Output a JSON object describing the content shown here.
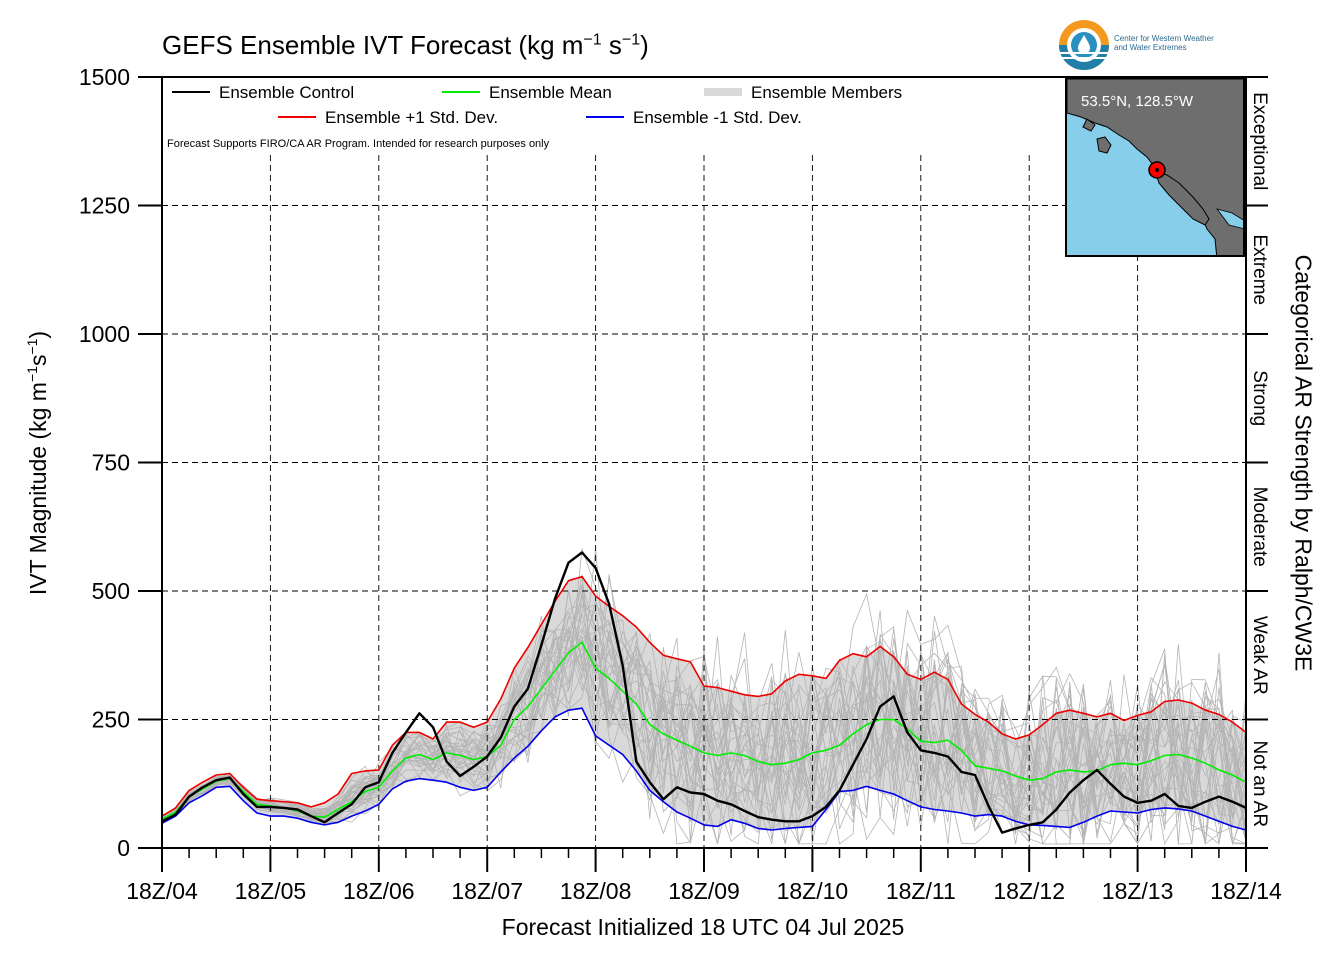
{
  "title": {
    "main": "GEFS Ensemble IVT Forecast (kg m",
    "exp1": "−1",
    "mid": " s",
    "exp2": "−1",
    "end": ")"
  },
  "ylabel": {
    "main": "IVT Magnitude (kg m",
    "exp1": "−1",
    "mid": "s",
    "exp2": "−1",
    "end": ")"
  },
  "right_axis_label": "Categorical AR Strength by Ralph/CW3E",
  "xlabel": "Forecast Initialized 18 UTC 04 Jul 2025",
  "note": "Forecast Supports FIRO/CA AR Program. Intended for research purposes only",
  "logo": {
    "line1": "Center for Western Weather",
    "line2": "and Water Extremes"
  },
  "inset": {
    "label": "53.5°N, 128.5°W"
  },
  "colors": {
    "control": "#000000",
    "mean": "#00ee00",
    "plus_std": "#ee0000",
    "minus_std": "#0000ee",
    "members": "#b4b4b4",
    "spread_fill": "#d9d9d9"
  },
  "chart_data": {
    "type": "line",
    "x_unit": "hours since 18Z/04",
    "x_ticks": [
      0,
      24,
      48,
      72,
      96,
      120,
      144,
      168,
      192,
      216,
      240
    ],
    "x_tick_labels": [
      "18Z/04",
      "18Z/05",
      "18Z/06",
      "18Z/07",
      "18Z/08",
      "18Z/09",
      "18Z/10",
      "18Z/11",
      "18Z/12",
      "18Z/13",
      "18Z/14"
    ],
    "xlim": [
      0,
      240
    ],
    "ylim": [
      0,
      1500
    ],
    "y_ticks": [
      0,
      250,
      500,
      750,
      1000,
      1250,
      1500
    ],
    "grid": true,
    "categories_right": [
      {
        "name": "Exceptional",
        "from": 1250,
        "to": 1500
      },
      {
        "name": "Extreme",
        "from": 1000,
        "to": 1250
      },
      {
        "name": "Strong",
        "from": 750,
        "to": 1000
      },
      {
        "name": "Moderate",
        "from": 500,
        "to": 750
      },
      {
        "name": "Weak AR",
        "from": 250,
        "to": 500
      },
      {
        "name": "Not an AR",
        "from": 0,
        "to": 250
      }
    ],
    "legend": [
      {
        "label": "Ensemble Control",
        "key": "control"
      },
      {
        "label": "Ensemble Mean",
        "key": "mean"
      },
      {
        "label": "Ensemble Members",
        "key": "members"
      },
      {
        "label": "Ensemble +1 Std. Dev.",
        "key": "plus_std"
      },
      {
        "label": "Ensemble -1 Std. Dev.",
        "key": "minus_std"
      }
    ],
    "x": [
      0,
      3,
      6,
      9,
      12,
      15,
      18,
      21,
      24,
      27,
      30,
      33,
      36,
      39,
      42,
      45,
      48,
      51,
      54,
      57,
      60,
      63,
      66,
      69,
      72,
      75,
      78,
      81,
      84,
      87,
      90,
      93,
      96,
      99,
      102,
      105,
      108,
      111,
      114,
      117,
      120,
      123,
      126,
      129,
      132,
      135,
      138,
      141,
      144,
      147,
      150,
      153,
      156,
      159,
      162,
      165,
      168,
      171,
      174,
      177,
      180,
      183,
      186,
      189,
      192,
      195,
      198,
      201,
      204,
      207,
      210,
      213,
      216,
      219,
      222,
      225,
      228,
      231,
      234,
      237,
      240
    ],
    "series": [
      {
        "name": "Ensemble Control",
        "key": "control",
        "values": [
          52,
          65,
          100,
          118,
          132,
          137,
          105,
          80,
          80,
          78,
          75,
          62,
          50,
          68,
          85,
          118,
          128,
          185,
          225,
          262,
          235,
          168,
          140,
          158,
          178,
          215,
          275,
          310,
          395,
          485,
          555,
          575,
          545,
          475,
          355,
          168,
          128,
          95,
          118,
          108,
          105,
          92,
          85,
          72,
          60,
          55,
          52,
          52,
          62,
          80,
          112,
          162,
          212,
          275,
          295,
          225,
          190,
          185,
          178,
          148,
          142,
          82,
          30,
          38,
          45,
          50,
          75,
          108,
          132,
          152,
          125,
          100,
          88,
          92,
          105,
          82,
          78,
          90,
          100,
          90,
          78
        ]
      },
      {
        "name": "Ensemble Mean",
        "key": "mean",
        "values": [
          56,
          70,
          100,
          115,
          130,
          135,
          110,
          85,
          82,
          78,
          72,
          62,
          60,
          75,
          90,
          110,
          118,
          150,
          175,
          182,
          172,
          185,
          180,
          172,
          178,
          200,
          250,
          275,
          310,
          345,
          380,
          400,
          350,
          330,
          305,
          280,
          240,
          222,
          210,
          198,
          185,
          180,
          185,
          180,
          168,
          162,
          165,
          172,
          185,
          190,
          200,
          222,
          240,
          250,
          250,
          232,
          208,
          205,
          210,
          190,
          160,
          155,
          150,
          140,
          132,
          135,
          148,
          152,
          148,
          150,
          162,
          165,
          162,
          170,
          180,
          182,
          175,
          165,
          152,
          142,
          128
        ]
      },
      {
        "name": "Ensemble +1 Std. Dev.",
        "key": "plus_std",
        "values": [
          62,
          78,
          112,
          128,
          142,
          145,
          118,
          95,
          92,
          90,
          88,
          80,
          88,
          105,
          145,
          150,
          152,
          200,
          225,
          225,
          212,
          245,
          245,
          235,
          245,
          290,
          350,
          390,
          435,
          480,
          520,
          528,
          490,
          470,
          452,
          430,
          400,
          375,
          368,
          362,
          315,
          312,
          305,
          298,
          295,
          300,
          325,
          338,
          335,
          330,
          365,
          378,
          372,
          392,
          372,
          338,
          328,
          342,
          328,
          280,
          260,
          245,
          222,
          212,
          220,
          240,
          262,
          268,
          262,
          255,
          262,
          248,
          258,
          265,
          285,
          288,
          282,
          268,
          260,
          245,
          225
        ]
      },
      {
        "name": "Ensemble -1 Std. Dev.",
        "key": "minus_std",
        "values": [
          48,
          62,
          88,
          102,
          118,
          120,
          92,
          68,
          62,
          62,
          58,
          50,
          45,
          50,
          62,
          72,
          85,
          115,
          130,
          135,
          132,
          128,
          118,
          112,
          118,
          148,
          175,
          198,
          228,
          255,
          268,
          272,
          218,
          200,
          182,
          150,
          112,
          90,
          70,
          58,
          45,
          42,
          55,
          48,
          38,
          35,
          38,
          40,
          42,
          75,
          110,
          112,
          120,
          112,
          105,
          92,
          80,
          75,
          72,
          68,
          62,
          65,
          62,
          52,
          45,
          44,
          42,
          40,
          50,
          62,
          72,
          70,
          68,
          75,
          78,
          76,
          72,
          62,
          52,
          42,
          35
        ]
      }
    ]
  }
}
